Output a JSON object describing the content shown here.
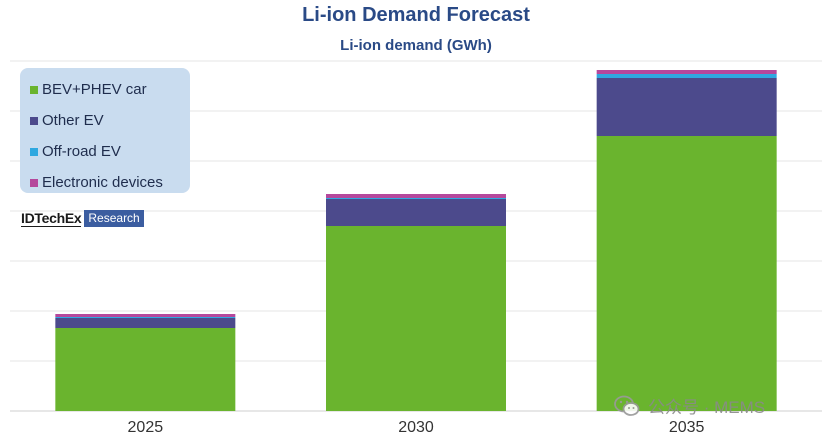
{
  "header": {
    "title": "Li-ion Demand Forecast",
    "subtitle": "Li-ion demand (GWh)"
  },
  "legend": {
    "items": [
      {
        "label": "BEV+PHEV car",
        "color": "#6ab42e"
      },
      {
        "label": "Other EV",
        "color": "#4c4a8c"
      },
      {
        "label": "Off-road EV",
        "color": "#2fa8e0"
      },
      {
        "label": "Electronic devices",
        "color": "#b5489c"
      }
    ]
  },
  "logo": {
    "main": "IDTechEx",
    "sub": "Research"
  },
  "watermark": {
    "text": "公众号 · MEMS",
    "icon": "wechat-icon"
  },
  "chart_data": {
    "type": "bar",
    "stacked": true,
    "categories": [
      "2025",
      "2030",
      "2035"
    ],
    "series": [
      {
        "name": "BEV+PHEV car",
        "color": "#6ab42e",
        "values": [
          83,
          185,
          275
        ]
      },
      {
        "name": "Other EV",
        "color": "#4c4a8c",
        "values": [
          10,
          27,
          58
        ]
      },
      {
        "name": "Off-road EV",
        "color": "#2fa8e0",
        "values": [
          1,
          1,
          4
        ]
      },
      {
        "name": "Electronic devices",
        "color": "#b5489c",
        "values": [
          3,
          4,
          4
        ]
      }
    ],
    "ylim": [
      0,
      350
    ],
    "grid": true,
    "legend_position": "top-left"
  }
}
